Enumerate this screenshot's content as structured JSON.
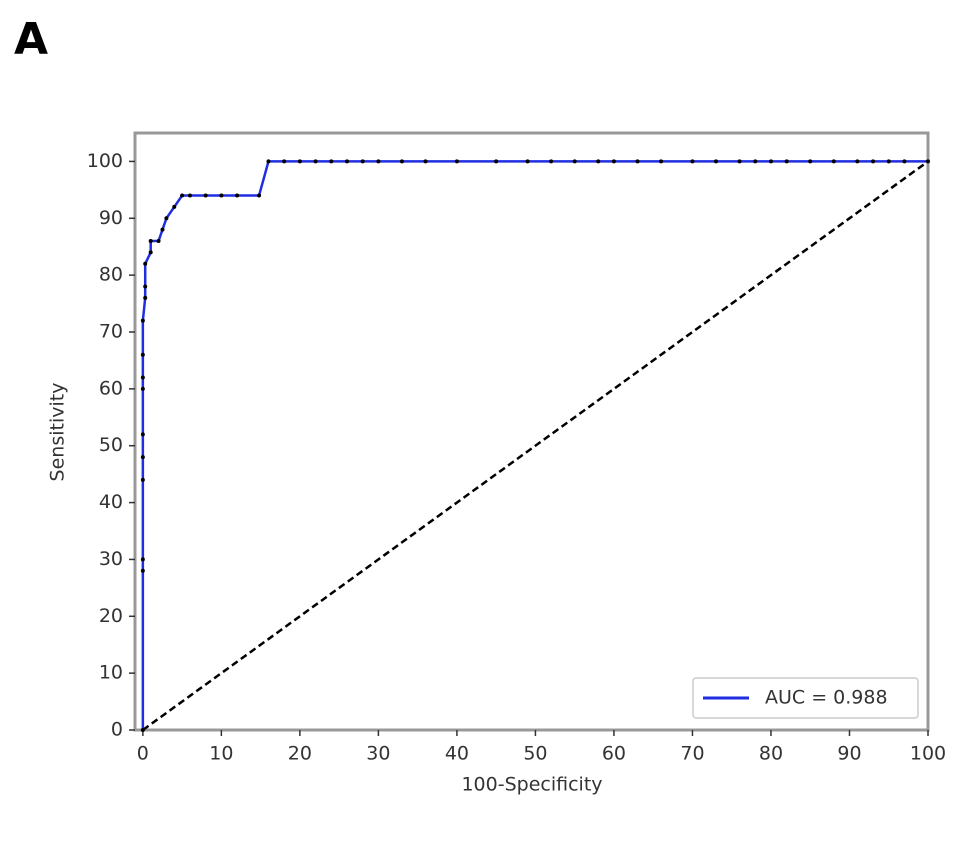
{
  "panel_label": "A",
  "chart_data": {
    "type": "line",
    "xlabel": "100-Specificity",
    "ylabel": "Sensitivity",
    "xlim": [
      -1,
      100
    ],
    "ylim": [
      0,
      105
    ],
    "xticks": [
      0,
      10,
      20,
      30,
      40,
      50,
      60,
      70,
      80,
      90,
      100
    ],
    "yticks": [
      0,
      10,
      20,
      30,
      40,
      50,
      60,
      70,
      80,
      90,
      100
    ],
    "legend": "lower right",
    "diagonal": {
      "color": "#000000",
      "x": [
        0,
        100
      ],
      "y": [
        0,
        100
      ]
    },
    "series": [
      {
        "name": "AUC = 0.988",
        "color": "#1f2ee0",
        "marker_color": "#000000",
        "x": [
          0,
          0,
          0,
          0,
          0,
          0,
          0,
          0,
          0,
          0,
          0.3,
          0.3,
          0.3,
          1,
          1,
          2,
          2.5,
          3,
          4,
          5,
          6,
          8,
          10,
          12,
          14.8,
          16,
          18,
          20,
          22,
          24,
          26,
          28,
          30,
          33,
          36,
          40,
          45,
          49,
          52,
          55,
          58,
          60,
          63,
          66,
          70,
          73,
          76,
          78,
          80,
          82,
          85,
          88,
          91,
          93,
          95,
          97,
          100
        ],
        "values": [
          0,
          28,
          30,
          44,
          48,
          52,
          60,
          62,
          66,
          72,
          76,
          78,
          82,
          84,
          86,
          86,
          88,
          90,
          92,
          94,
          94,
          94,
          94,
          94,
          94,
          100,
          100,
          100,
          100,
          100,
          100,
          100,
          100,
          100,
          100,
          100,
          100,
          100,
          100,
          100,
          100,
          100,
          100,
          100,
          100,
          100,
          100,
          100,
          100,
          100,
          100,
          100,
          100,
          100,
          100,
          100,
          100
        ]
      }
    ]
  }
}
